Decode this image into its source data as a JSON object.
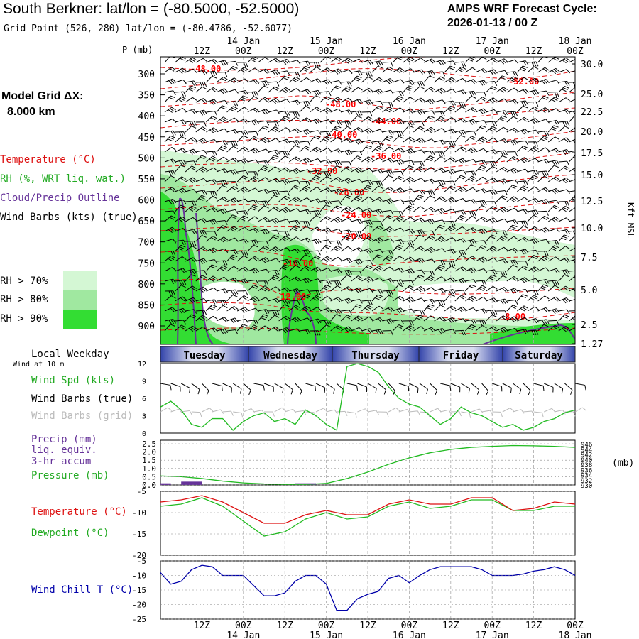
{
  "header": {
    "title": "South Berkner:  lat/lon = (-80.5000, -52.5000)",
    "grid_point": "Grid Point (526, 280) lat/lon = (-80.4786, -52.6077)",
    "cycle_line1": "AMPS WRF Forecast Cycle:",
    "cycle_line2": "2026-01-13 / 00  Z"
  },
  "legend": {
    "model_grid_label": "Model Grid ΔX:",
    "model_grid_value": "8.000 km",
    "temperature": "Temperature (°C)",
    "rh": "RH (%, WRT liq. wat.)",
    "cloud": "Cloud/Precip Outline",
    "wind_barbs": "Wind Barbs (kts) (true)",
    "rh70": "RH > 70%",
    "rh80": "RH > 80%",
    "rh90": "RH > 90%",
    "colors": {
      "rh70": "#d4f7d4",
      "rh80": "#a0e8a0",
      "rh90": "#33dd33",
      "temp": "#dd1111",
      "cloud": "#663399",
      "dewpoint": "#22bb22",
      "windchill": "#0000aa"
    }
  },
  "time_axis": {
    "p_label": "P (mb)",
    "hour_labels": [
      "12Z",
      "00Z",
      "12Z",
      "00Z",
      "12Z",
      "00Z",
      "12Z",
      "00Z",
      "12Z",
      "00Z"
    ],
    "date_labels": [
      "14 Jan",
      "15 Jan",
      "16 Jan",
      "17 Jan",
      "18 Jan"
    ]
  },
  "weekday": {
    "title": "Local Weekday",
    "subtitle": "Wind at 10 m",
    "days": [
      "Tuesday",
      "Wednesday",
      "Thursday",
      "Friday",
      "Saturday"
    ]
  },
  "chart_data": [
    {
      "type": "heatmap",
      "name": "cross-section",
      "y_label": "P (mb)",
      "y_right_label": "Kft MSL",
      "pressure_ticks": [
        300,
        350,
        400,
        450,
        500,
        550,
        600,
        650,
        700,
        750,
        800,
        850,
        900
      ],
      "kft_ticks": [
        "30.0",
        "25.0",
        "22.5",
        "20.0",
        "17.5",
        "15.0",
        "12.5",
        "10.0",
        "7.5",
        "5.0",
        "2.5",
        "1.27"
      ],
      "temperature_labels": [
        "-48.00",
        "-52.00",
        "-48.00",
        "-44.00",
        "-40.00",
        "-36.00",
        "-32.00",
        "-28.00",
        "-24.00",
        "-20.00",
        "-16.00",
        "-12.00",
        "-8.00"
      ]
    },
    {
      "type": "line",
      "name": "wind-speed",
      "legend": [
        "Wind Spd (kts)",
        "Wind Barbs (true)",
        "Wind Barbs (grid)"
      ],
      "y_ticks": [
        "12",
        "9",
        "6",
        "3",
        "0"
      ],
      "ylim": [
        0,
        12
      ],
      "x_hours": [
        0,
        3,
        6,
        9,
        12,
        15,
        18,
        21,
        24,
        27,
        30,
        33,
        36,
        39,
        42,
        45,
        48,
        51,
        54,
        57,
        60,
        63,
        66,
        69,
        72,
        75,
        78,
        81,
        84,
        87,
        90,
        93,
        96,
        99,
        102,
        105,
        108,
        111,
        114,
        117,
        120
      ],
      "values": [
        4.5,
        5.5,
        4.0,
        1.5,
        1.0,
        2.5,
        2.5,
        0.5,
        2.0,
        3.0,
        3.5,
        2.0,
        2.5,
        1.5,
        4.0,
        3.0,
        1.5,
        0.5,
        11.5,
        12.0,
        11.5,
        10.5,
        8.0,
        6.0,
        5.0,
        4.5,
        3.0,
        1.5,
        2.5,
        4.5,
        3.5,
        3.0,
        2.0,
        1.0,
        1.5,
        0.5,
        1.0,
        2.0,
        2.5,
        3.5,
        4.0
      ]
    },
    {
      "type": "line",
      "name": "precip-pressure",
      "legend": [
        "Precip (mm)",
        "liq. equiv.",
        "3-hr accum",
        "Pressure (mb)"
      ],
      "y_ticks": [
        "2.5",
        "2.0",
        "1.5",
        "1.0",
        "0.5",
        "0.0"
      ],
      "y_right_ticks": [
        "946",
        "944",
        "942",
        "940",
        "938",
        "936",
        "934",
        "932",
        "930"
      ],
      "y_right_unit": "(mb)",
      "ylim": [
        0,
        2.5
      ],
      "pressure_ylim": [
        930,
        946
      ],
      "precip_bars": [
        {
          "start": 0,
          "end": 3,
          "value": 0.1
        },
        {
          "start": 6,
          "end": 12,
          "value": 0.2
        },
        {
          "start": 39,
          "end": 45,
          "value": 0.1
        }
      ],
      "pressure_x": [
        0,
        6,
        12,
        18,
        24,
        30,
        36,
        42,
        48,
        54,
        60,
        66,
        72,
        78,
        84,
        90,
        96,
        102,
        108,
        114,
        120
      ],
      "pressure_values": [
        933.5,
        933.2,
        932.5,
        931.5,
        930.8,
        930.4,
        930.2,
        930.2,
        930.6,
        932.5,
        935.0,
        938.0,
        940.5,
        942.5,
        943.8,
        944.6,
        945.0,
        945.3,
        945.2,
        945.0,
        944.6
      ]
    },
    {
      "type": "line",
      "name": "temp-dewpoint",
      "legend": [
        "Temperature (°C)",
        "Dewpoint (°C)"
      ],
      "y_ticks": [
        "-5",
        "-10",
        "-15",
        "-20"
      ],
      "ylim": [
        -20,
        -5
      ],
      "x": [
        0,
        6,
        12,
        18,
        24,
        30,
        36,
        42,
        48,
        54,
        60,
        66,
        72,
        78,
        84,
        90,
        96,
        102,
        108,
        114,
        120
      ],
      "temperature": [
        -7.5,
        -7.0,
        -6.0,
        -7.5,
        -10.0,
        -12.5,
        -12.5,
        -10.5,
        -9.5,
        -10.5,
        -10.5,
        -8.0,
        -7.0,
        -8.0,
        -8.0,
        -6.5,
        -6.5,
        -9.5,
        -9.0,
        -7.5,
        -8.0
      ],
      "dewpoint": [
        -8.5,
        -8.0,
        -6.5,
        -8.5,
        -12.0,
        -15.5,
        -14.5,
        -11.5,
        -10.0,
        -11.5,
        -11.0,
        -8.5,
        -7.5,
        -9.0,
        -8.5,
        -7.0,
        -7.0,
        -9.5,
        -9.5,
        -8.5,
        -8.5
      ]
    },
    {
      "type": "line",
      "name": "wind-chill",
      "legend": [
        "Wind Chill T (°C)"
      ],
      "y_ticks": [
        "-5",
        "-10",
        "-15",
        "-20",
        "-25"
      ],
      "ylim": [
        -25,
        -5
      ],
      "x": [
        0,
        3,
        6,
        9,
        12,
        15,
        18,
        21,
        24,
        27,
        30,
        33,
        36,
        39,
        42,
        45,
        48,
        51,
        54,
        57,
        60,
        63,
        66,
        69,
        72,
        75,
        78,
        81,
        84,
        87,
        90,
        93,
        96,
        99,
        102,
        105,
        108,
        111,
        114,
        117,
        120
      ],
      "values": [
        -9,
        -13,
        -12,
        -8,
        -6.5,
        -7,
        -10,
        -10,
        -10,
        -13.5,
        -17,
        -17,
        -16,
        -12,
        -10,
        -10,
        -13,
        -22,
        -22,
        -18,
        -16.5,
        -15.5,
        -11,
        -10,
        -12.5,
        -10,
        -8,
        -7,
        -7,
        -7,
        -7,
        -8,
        -10,
        -10,
        -10,
        -9.5,
        -8.5,
        -8,
        -7,
        -8,
        -10
      ]
    }
  ]
}
